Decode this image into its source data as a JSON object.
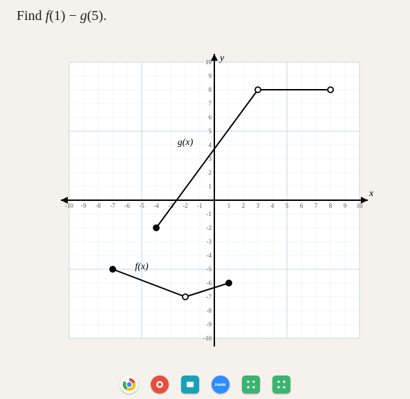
{
  "question": "Find f(1) − g(5).",
  "chart": {
    "type": "line",
    "xlim": [
      -10,
      10
    ],
    "ylim": [
      -10,
      10
    ],
    "tick_step": 1,
    "grid_color": "#c9d6e2",
    "grid_light": "#e6edf4",
    "axis_color": "#000000",
    "background_color": "#ffffff",
    "x_axis_label": "x",
    "y_axis_label": "y",
    "tick_fontsize": 9,
    "label_fontsize": 14,
    "series_f": {
      "label": "f(x)",
      "label_pos": {
        "x": -5,
        "y": -5
      },
      "color": "#000000",
      "line_width": 2,
      "segments": [
        {
          "from": {
            "x": -7,
            "y": -5
          },
          "to": {
            "x": -2,
            "y": -7
          }
        },
        {
          "from": {
            "x": -2,
            "y": -7
          },
          "to": {
            "x": 1,
            "y": -6
          }
        }
      ],
      "points": [
        {
          "x": -7,
          "y": -5,
          "filled": true
        },
        {
          "x": -2,
          "y": -7,
          "filled": false
        },
        {
          "x": 1,
          "y": -6,
          "filled": true
        }
      ]
    },
    "series_g": {
      "label": "g(x)",
      "label_pos": {
        "x": -2,
        "y": 4
      },
      "color": "#000000",
      "line_width": 2,
      "segments": [
        {
          "from": {
            "x": -4,
            "y": -2
          },
          "to": {
            "x": 3,
            "y": 8
          }
        },
        {
          "from": {
            "x": 3,
            "y": 8
          },
          "to": {
            "x": 8,
            "y": 8
          }
        }
      ],
      "points": [
        {
          "x": -4,
          "y": -2,
          "filled": true
        },
        {
          "x": 3,
          "y": 8,
          "filled": false
        },
        {
          "x": 8,
          "y": 8,
          "filled": false
        }
      ]
    },
    "marker_radius": 4
  },
  "taskbar": {
    "icons": [
      {
        "name": "chrome-icon",
        "bg": "#ffffff"
      },
      {
        "name": "app-red-icon",
        "bg": "#e74c3c"
      },
      {
        "name": "app-teal-icon",
        "bg": "#16a2b8"
      },
      {
        "name": "zoom-icon",
        "bg": "#2d8cff",
        "label": "zoom"
      },
      {
        "name": "dice1-icon",
        "bg": "#3cb371"
      },
      {
        "name": "dice2-icon",
        "bg": "#3cb371"
      }
    ]
  }
}
